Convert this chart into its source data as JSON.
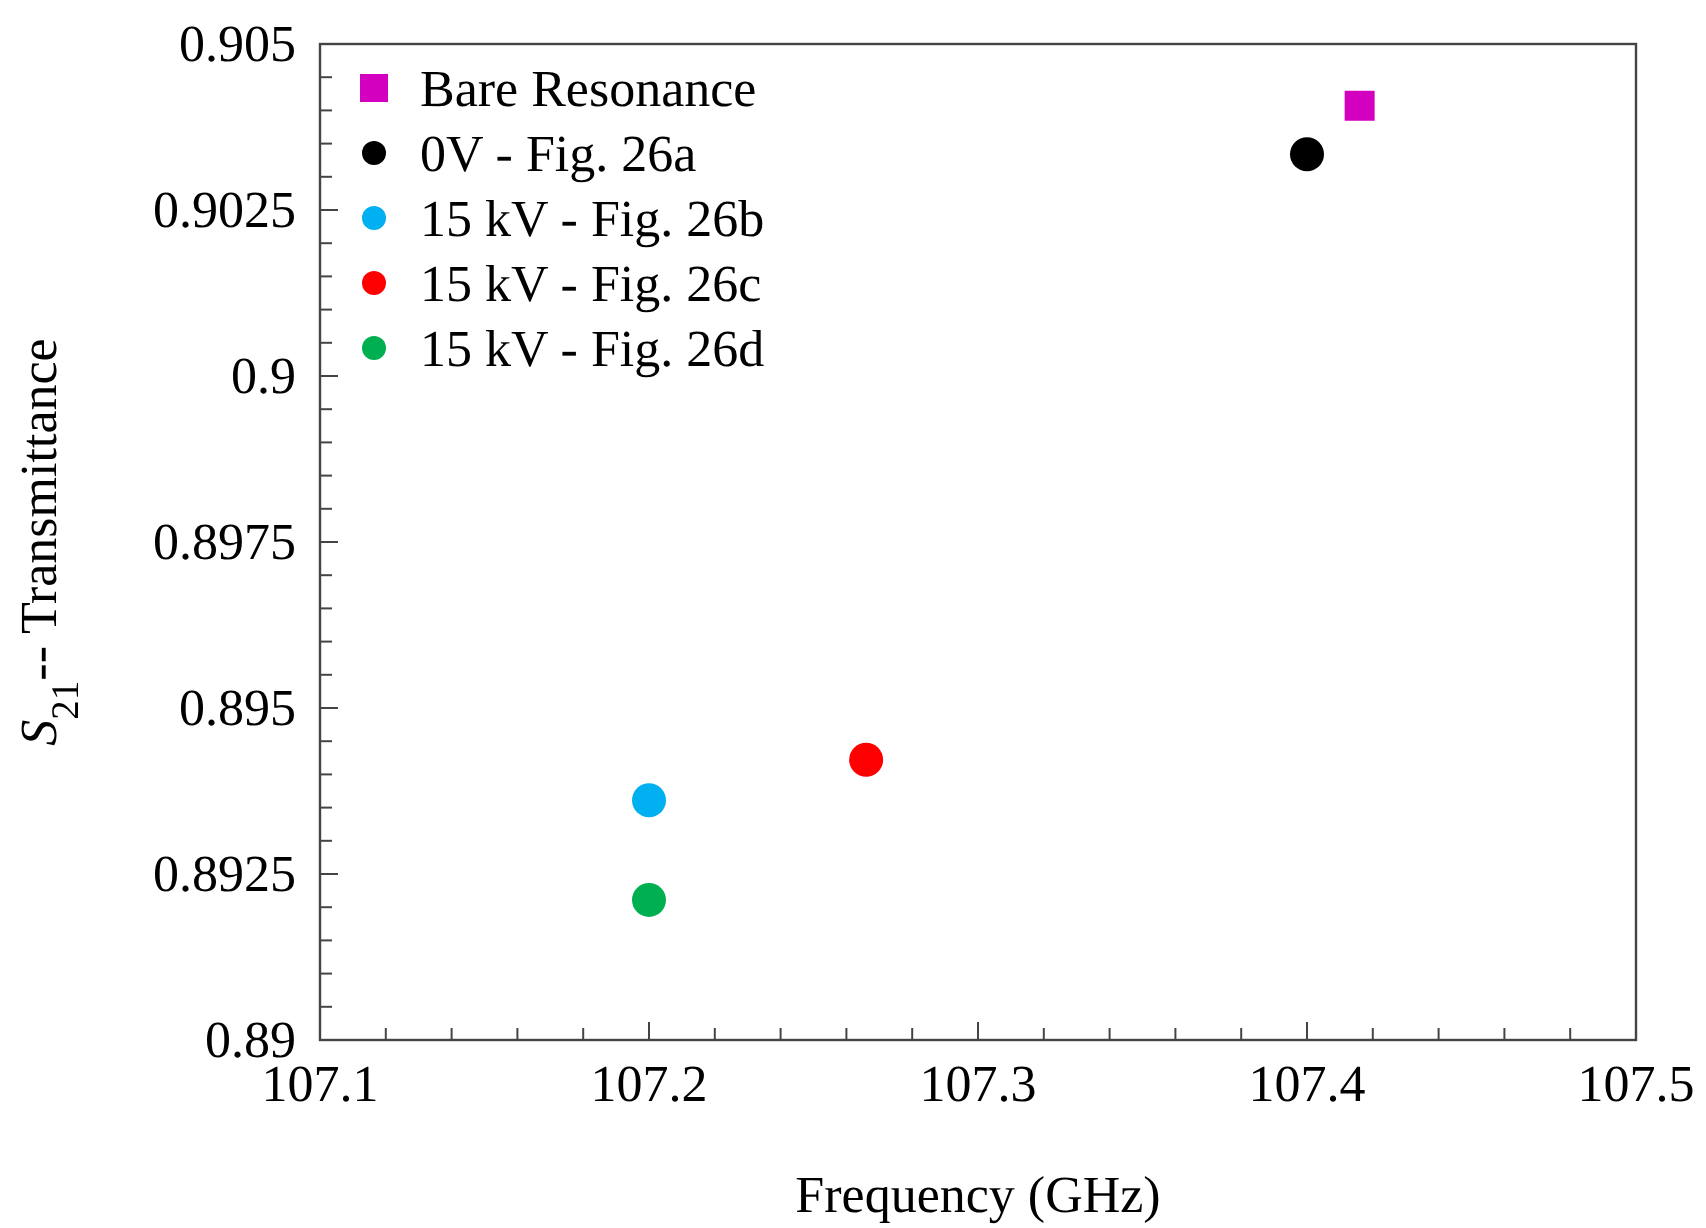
{
  "chart_data": {
    "type": "scatter",
    "xlabel": "Frequency (GHz)",
    "ylabel": "S$_{21}$-- Transmittance",
    "xlim": [
      107.1,
      107.5
    ],
    "ylim": [
      0.89,
      0.905
    ],
    "xticks": [
      107.1,
      {
        "value": 107.12,
        "label": null
      },
      {
        "value": 107.14,
        "label": null
      },
      {
        "value": 107.16,
        "label": null
      },
      {
        "value": 107.18,
        "label": null
      },
      107.2,
      {
        "value": 107.22,
        "label": null
      },
      {
        "value": 107.24,
        "label": null
      },
      {
        "value": 107.26,
        "label": null
      },
      {
        "value": 107.28,
        "label": null
      },
      107.3,
      {
        "value": 107.32,
        "label": null
      },
      {
        "value": 107.34,
        "label": null
      },
      {
        "value": 107.36,
        "label": null
      },
      {
        "value": 107.38,
        "label": null
      },
      107.4,
      {
        "value": 107.42,
        "label": null
      },
      {
        "value": 107.44,
        "label": null
      },
      {
        "value": 107.46,
        "label": null
      },
      {
        "value": 107.48,
        "label": null
      },
      107.5
    ],
    "yticks": [
      0.89,
      {
        "value": 0.8905,
        "label": null
      },
      {
        "value": 0.891,
        "label": null
      },
      {
        "value": 0.8915,
        "label": null
      },
      {
        "value": 0.892,
        "label": null
      },
      0.8925,
      {
        "value": 0.893,
        "label": null
      },
      {
        "value": 0.8935,
        "label": null
      },
      {
        "value": 0.894,
        "label": null
      },
      {
        "value": 0.8945,
        "label": null
      },
      0.895,
      {
        "value": 0.8955,
        "label": null
      },
      {
        "value": 0.896,
        "label": null
      },
      {
        "value": 0.8965,
        "label": null
      },
      {
        "value": 0.897,
        "label": null
      },
      0.8975,
      {
        "value": 0.898,
        "label": null
      },
      {
        "value": 0.8985,
        "label": null
      },
      {
        "value": 0.899,
        "label": null
      },
      {
        "value": 0.8995,
        "label": null
      },
      {
        "value": 0.9,
        "label": "0.9"
      },
      {
        "value": 0.9005,
        "label": null
      },
      {
        "value": 0.901,
        "label": null
      },
      {
        "value": 0.9015,
        "label": null
      },
      {
        "value": 0.902,
        "label": null
      },
      0.9025,
      {
        "value": 0.903,
        "label": null
      },
      {
        "value": 0.9035,
        "label": null
      },
      {
        "value": 0.904,
        "label": null
      },
      {
        "value": 0.9045,
        "label": null
      },
      0.905
    ],
    "legend": "top left",
    "grid": false,
    "series": [
      {
        "name": "Bare Resonance",
        "color": "#d400c0",
        "marker": "square",
        "x": [
          107.416
        ],
        "values": [
          0.90407
        ]
      },
      {
        "name": "0V - Fig. 26a",
        "color": "#000000",
        "marker": "circle",
        "x": [
          107.4
        ],
        "values": [
          0.90334
        ]
      },
      {
        "name": "15 kV - Fig. 26b",
        "color": "#00b0f0",
        "marker": "circle",
        "x": [
          107.2
        ],
        "values": [
          0.89361
        ]
      },
      {
        "name": "15 kV - Fig. 26c",
        "color": "#ff0000",
        "marker": "circle",
        "x": [
          107.266
        ],
        "values": [
          0.89422
        ]
      },
      {
        "name": "15 kV - Fig. 26d",
        "color": "#00b050",
        "marker": "circle",
        "x": [
          107.2
        ],
        "values": [
          0.89211
        ]
      }
    ]
  }
}
